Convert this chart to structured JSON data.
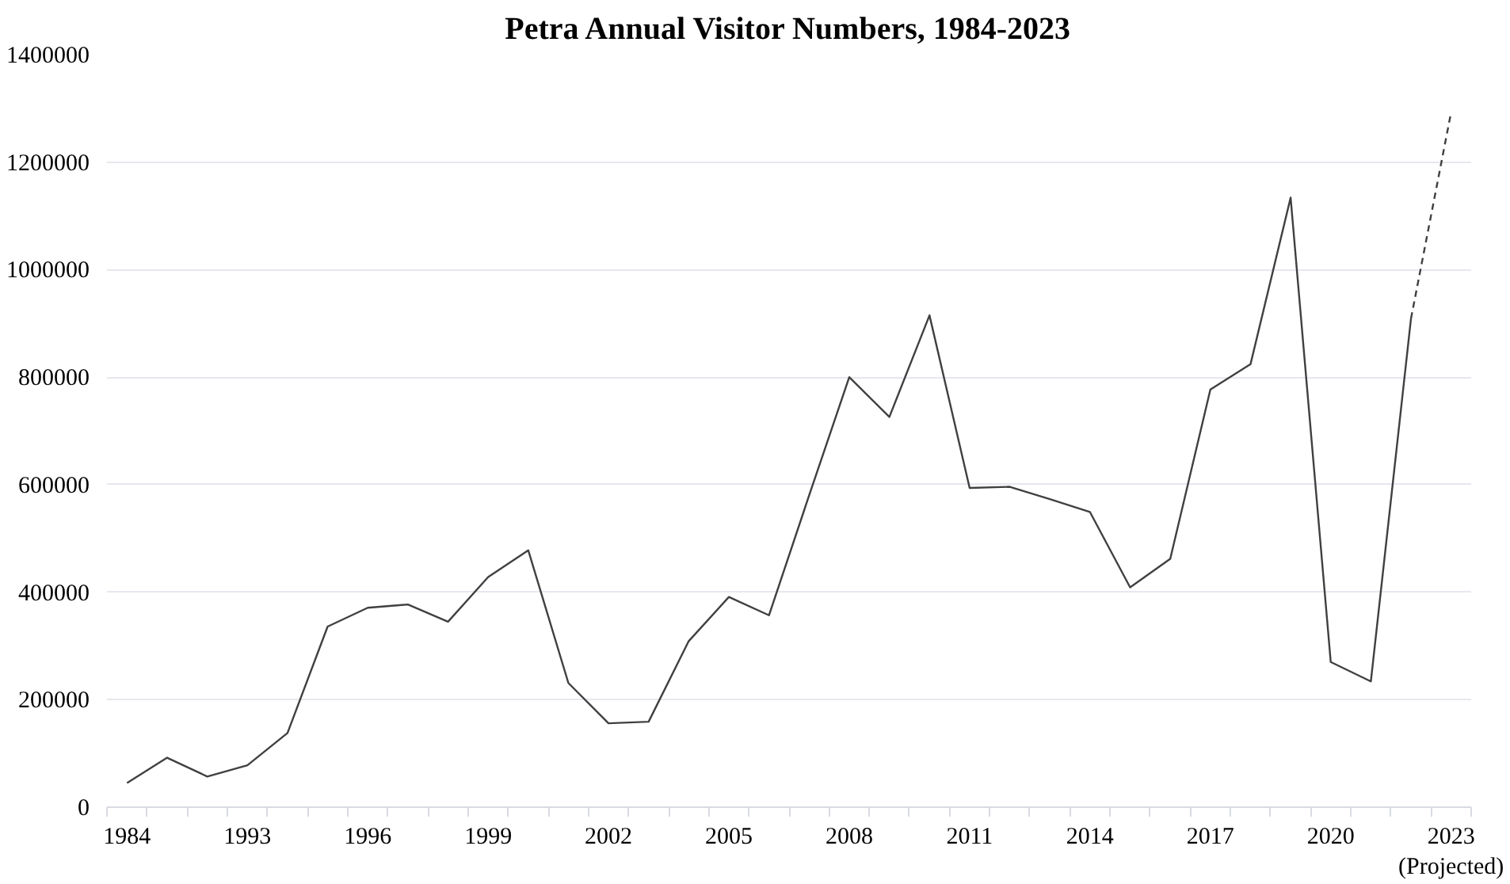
{
  "chart_data": {
    "type": "line",
    "title": "Petra Annual Visitor Numbers, 1984-2023",
    "categories": [
      "1984",
      null,
      null,
      "1993",
      null,
      null,
      "1996",
      null,
      null,
      "1999",
      null,
      null,
      "2002",
      null,
      null,
      "2005",
      null,
      null,
      "2008",
      null,
      null,
      "2011",
      null,
      null,
      "2014",
      null,
      null,
      "2017",
      null,
      null,
      "2020",
      null,
      null,
      "2023\n(Projected)"
    ],
    "series": [
      {
        "color": "#404040",
        "line_style": "solid",
        "values": [
          45000,
          92000,
          57000,
          78000,
          138000,
          336000,
          371000,
          377000,
          345000,
          428000,
          478000,
          231000,
          156000,
          159000,
          309000,
          391000,
          357000,
          580000,
          800000,
          726000,
          915000,
          594000,
          596000,
          573000,
          549000,
          409000,
          462000,
          777000,
          824000,
          1134000,
          270000,
          234000,
          909000,
          null
        ]
      },
      {
        "color": "#404040",
        "line_style": "dashed",
        "values": [
          null,
          null,
          null,
          null,
          null,
          null,
          null,
          null,
          null,
          null,
          null,
          null,
          null,
          null,
          null,
          null,
          null,
          null,
          null,
          null,
          null,
          null,
          null,
          null,
          null,
          null,
          null,
          null,
          null,
          null,
          null,
          null,
          909000,
          1293000
        ]
      }
    ],
    "ylim": [
      0,
      1400000
    ],
    "yticks": [
      0,
      200000,
      400000,
      600000,
      800000,
      1000000,
      1200000,
      1400000
    ],
    "grid": "y",
    "marker": "none"
  }
}
